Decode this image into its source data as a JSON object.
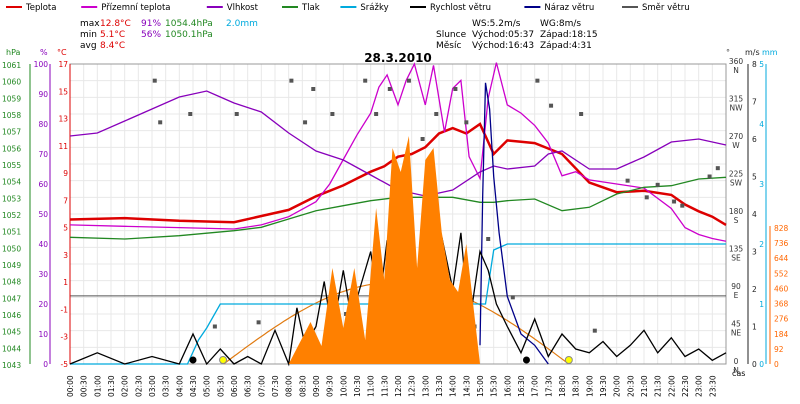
{
  "chart_data": {
    "type": "line",
    "title": "28.3.2010",
    "legend": [
      {
        "name": "Teplota",
        "color": "#dd0000"
      },
      {
        "name": "Přízemní teplota",
        "color": "#cc00cc"
      },
      {
        "name": "Vlhkost",
        "color": "#8800bb"
      },
      {
        "name": "Tlak",
        "color": "#228822"
      },
      {
        "name": "Srážky",
        "color": "#00aadd"
      },
      {
        "name": "Rychlost větru",
        "color": "#000000"
      },
      {
        "name": "Náraz větru",
        "color": "#000088"
      },
      {
        "name": "Směr větru",
        "color": "#555555"
      }
    ],
    "stats": {
      "max_label": "max",
      "min_label": "min",
      "avg_label": "avg",
      "max_temp": "12.8°C",
      "max_hum": "91%",
      "max_press": "1054.4hPa",
      "max_rain": "2.0mm",
      "min_temp": "5.1°C",
      "min_hum": "56%",
      "min_press": "1050.1hPa",
      "avg_temp": "8.4°C"
    },
    "info": {
      "ws": "WS:5.2m/s",
      "wg": "WG:8m/s",
      "sun_label": "Slunce",
      "sun_rise": "Východ:05:37",
      "sun_set": "Západ:18:15",
      "moon_label": "Měsíc",
      "moon_rise": "Východ:16:43",
      "moon_set": "Západ:4:31"
    },
    "axes": {
      "hpa_unit": "hPa",
      "pct_unit": "%",
      "c_unit": "°C",
      "ms_unit": "m/s",
      "deg_unit": "°",
      "mm_unit": "mm",
      "time_unit": "čas",
      "hpa_ticks": [
        "1061",
        "1060",
        "1059",
        "1058",
        "1057",
        "1056",
        "1055",
        "1054",
        "1053",
        "1052",
        "1051",
        "1050",
        "1049",
        "1048",
        "1047",
        "1046",
        "1045",
        "1044",
        "1043"
      ],
      "pct_ticks": [
        "100",
        "90",
        "80",
        "70",
        "60",
        "50",
        "40",
        "30",
        "20",
        "10",
        "0"
      ],
      "c_ticks": [
        "17",
        "15",
        "13",
        "11",
        "9",
        "7",
        "5",
        "3",
        "1",
        "-1",
        "-3",
        "-5"
      ],
      "deg_ticks": [
        {
          "deg": "360",
          "dir": "N"
        },
        {
          "deg": "315",
          "dir": "NW"
        },
        {
          "deg": "270",
          "dir": "W"
        },
        {
          "deg": "225",
          "dir": "SW"
        },
        {
          "deg": "180",
          "dir": "S"
        },
        {
          "deg": "135",
          "dir": "SE"
        },
        {
          "deg": "90",
          "dir": "E"
        },
        {
          "deg": "45",
          "dir": "NE"
        },
        {
          "deg": "0",
          "dir": "N"
        }
      ],
      "ms_ticks": [
        "5",
        "4",
        "3",
        "2",
        "1",
        "0"
      ],
      "wind_ticks": [
        "8",
        "7",
        "6",
        "5",
        "4",
        "3",
        "2",
        "1",
        "0"
      ],
      "rain_ticks": [
        "828",
        "736",
        "644",
        "552",
        "460",
        "368",
        "276",
        "184",
        "92",
        "0"
      ],
      "time_ticks": [
        "00:00",
        "00:30",
        "01:00",
        "01:30",
        "02:00",
        "02:30",
        "03:00",
        "03:30",
        "04:00",
        "04:30",
        "05:00",
        "05:30",
        "06:00",
        "06:30",
        "07:00",
        "07:30",
        "08:00",
        "08:30",
        "09:00",
        "09:30",
        "10:00",
        "10:30",
        "11:00",
        "11:30",
        "12:00",
        "12:30",
        "13:00",
        "13:30",
        "14:00",
        "14:30",
        "15:00",
        "15:30",
        "16:00",
        "16:30",
        "17:00",
        "17:30",
        "18:00",
        "18:30",
        "19:00",
        "19:30",
        "20:00",
        "20:30",
        "21:00",
        "21:30",
        "22:00",
        "22:30",
        "23:00",
        "23:30"
      ]
    },
    "series": [
      {
        "name": "Teplota",
        "unit": "°C",
        "x": [
          0,
          2,
          4,
          6,
          8,
          9,
          10,
          10.5,
          11,
          11.5,
          12,
          12.5,
          13,
          13.5,
          14,
          14.5,
          15,
          15.5,
          16,
          16.5,
          17,
          18,
          19,
          20,
          21,
          22,
          22.5,
          23,
          23.5,
          24
        ],
        "y": [
          5.6,
          5.7,
          5.5,
          5.4,
          6.3,
          7.3,
          8.1,
          8.6,
          9.1,
          9.5,
          10.2,
          10.4,
          10.9,
          11.9,
          12.3,
          11.9,
          12.6,
          10.4,
          11.4,
          11.3,
          11.2,
          10.4,
          8.3,
          7.6,
          7.7,
          7.4,
          6.7,
          6.2,
          5.8,
          5.2
        ]
      },
      {
        "name": "Přízemní teplota",
        "unit": "°C",
        "x": [
          0,
          2,
          4,
          6,
          7,
          8,
          9,
          9.5,
          10,
          10.5,
          11,
          11.3,
          11.6,
          12,
          12.3,
          12.6,
          13,
          13.3,
          13.7,
          14,
          14.3,
          14.6,
          15,
          15.3,
          15.6,
          16,
          16.5,
          17,
          17.5,
          18,
          18.5,
          19,
          20,
          21,
          22,
          22.5,
          23,
          23.5,
          24
        ],
        "y": [
          5.2,
          5.1,
          5.0,
          4.9,
          5.2,
          5.8,
          6.9,
          8.2,
          10.0,
          11.8,
          13.4,
          15.3,
          16.2,
          14.0,
          15.8,
          17.0,
          14.0,
          16.9,
          12.0,
          15.2,
          15.8,
          10.2,
          8.6,
          14.5,
          17.1,
          14.0,
          13.4,
          12.5,
          11.2,
          8.8,
          9.1,
          8.5,
          8.2,
          7.9,
          6.4,
          5.0,
          4.5,
          4.2,
          4.0
        ]
      },
      {
        "name": "Vlhkost",
        "unit": "%",
        "x": [
          0,
          1,
          2,
          3,
          4,
          5,
          5.5,
          6,
          7,
          8,
          9,
          10,
          11,
          12,
          13,
          14,
          15,
          15.5,
          16,
          17,
          17.5,
          18,
          19,
          20,
          21,
          22,
          23,
          24
        ],
        "y": [
          76,
          77,
          81,
          85,
          89,
          91,
          89,
          87,
          84,
          77,
          71,
          68,
          63,
          58,
          56,
          58,
          64,
          66,
          65,
          66,
          70,
          71,
          65,
          65,
          69,
          74,
          75,
          73
        ]
      },
      {
        "name": "Tlak",
        "unit": "hPa",
        "x": [
          0,
          2,
          4,
          6,
          7,
          8,
          9,
          10,
          11,
          12,
          13,
          14,
          15,
          15.5,
          16,
          17,
          18,
          19,
          20,
          21,
          22,
          23,
          24
        ],
        "y": [
          1050.6,
          1050.5,
          1050.7,
          1051.0,
          1051.2,
          1051.7,
          1052.2,
          1052.5,
          1052.8,
          1053.0,
          1053.0,
          1053.0,
          1052.7,
          1052.7,
          1052.8,
          1052.9,
          1052.2,
          1052.4,
          1053.2,
          1053.6,
          1053.7,
          1054.1,
          1054.2
        ]
      },
      {
        "name": "Srážky",
        "unit": "mm",
        "x": [
          0,
          4.3,
          4.7,
          5.0,
          5.5,
          7.0,
          8.0,
          9.0,
          10.0,
          11.0,
          12.0,
          13.0,
          14.0,
          15.0,
          15.2,
          15.5,
          16.0,
          18,
          20,
          22,
          24
        ],
        "y": [
          0,
          0,
          0.4,
          0.6,
          1.0,
          1.0,
          1.0,
          1.0,
          1.0,
          1.0,
          1.0,
          1.0,
          1.0,
          1.0,
          1.0,
          1.9,
          2.0,
          2.0,
          2.0,
          2.0,
          2.0
        ]
      },
      {
        "name": "Náraz větru",
        "unit": "m/s",
        "x": [
          15,
          15.1,
          15.2,
          15.35,
          15.5,
          15.7,
          16,
          16.5,
          17,
          17.5
        ],
        "y": [
          0.5,
          4.5,
          7.5,
          6.8,
          5.0,
          3.5,
          1.8,
          0.8,
          0.5,
          0
        ]
      },
      {
        "name": "Rychlost větru",
        "unit": "m/s",
        "x": [
          0,
          1,
          2,
          3,
          4,
          4.5,
          5,
          5.5,
          6,
          6.5,
          7,
          7.5,
          8,
          8.3,
          8.6,
          9,
          9.3,
          9.6,
          10,
          10.3,
          10.6,
          11,
          11.3,
          11.6,
          12,
          12.3,
          12.6,
          13,
          13.3,
          13.6,
          14,
          14.3,
          14.6,
          15,
          15.3,
          15.6,
          16,
          16.5,
          17,
          17.5,
          18,
          18.5,
          19,
          19.5,
          20,
          20.5,
          21,
          21.5,
          22,
          22.5,
          23,
          23.5,
          24
        ],
        "y": [
          0,
          0.3,
          0,
          0.2,
          0,
          0.8,
          0,
          0.4,
          0,
          0.2,
          0,
          0.9,
          0,
          1.5,
          0.5,
          1.0,
          2.2,
          0.8,
          2.5,
          1.2,
          2.0,
          3.0,
          1.5,
          3.3,
          2.5,
          4.0,
          1.8,
          3.2,
          1.0,
          3.4,
          2.0,
          3.5,
          1.0,
          3.0,
          2.5,
          1.6,
          1.0,
          0.3,
          1.2,
          0.2,
          0.8,
          0.4,
          0.3,
          0.6,
          0.2,
          0.5,
          0.9,
          0.3,
          0.7,
          0.2,
          0.4,
          0.1,
          0.3
        ]
      },
      {
        "name": "Směr větru",
        "unit": "°",
        "type": "scatter",
        "x": [
          3.1,
          3.3,
          4.4,
          5.3,
          6.1,
          6.9,
          8.1,
          8.6,
          8.9,
          9.6,
          10.1,
          10.8,
          11.2,
          11.7,
          12.0,
          12.4,
          12.9,
          13.4,
          13.9,
          14.1,
          14.5,
          14.8,
          15.3,
          16.2,
          17.1,
          17.6,
          18.7,
          19.2,
          20.4,
          21.1,
          21.5,
          22.1,
          22.4,
          23.4,
          23.7
        ],
        "y": [
          340,
          290,
          300,
          45,
          300,
          50,
          340,
          290,
          330,
          300,
          60,
          340,
          300,
          330,
          55,
          340,
          270,
          300,
          30,
          330,
          290,
          45,
          150,
          80,
          340,
          310,
          300,
          40,
          220,
          200,
          215,
          195,
          190,
          225,
          235
        ]
      },
      {
        "name": "Srážky intenzita",
        "unit": "mm",
        "type": "area",
        "x": [
          8,
          8.8,
          9.2,
          9.6,
          10,
          10.4,
          10.8,
          11.2,
          11.5,
          11.8,
          12.1,
          12.4,
          12.7,
          13.0,
          13.3,
          13.6,
          13.9,
          14.2,
          14.5,
          14.8,
          15.0
        ],
        "y": [
          0,
          0.7,
          0.3,
          1.6,
          0.6,
          1.6,
          0.4,
          2.6,
          1.4,
          3.6,
          3.2,
          3.8,
          1.6,
          3.4,
          3.6,
          2.2,
          1.4,
          1.2,
          2.0,
          0.8,
          0
        ]
      }
    ],
    "sun_curve": {
      "rise": 5.62,
      "set": 18.25,
      "peak_c": 1
    },
    "markers": {
      "sun": [
        5.6,
        18.25
      ],
      "moon": [
        4.5,
        16.7
      ]
    },
    "ranges": {
      "c": [
        -5,
        17
      ],
      "pct": [
        0,
        100
      ],
      "hpa": [
        1043,
        1061
      ],
      "ms": [
        0,
        8
      ],
      "mm": [
        0,
        5
      ],
      "deg": [
        0,
        360
      ],
      "hours": [
        0,
        24
      ]
    },
    "colors": {
      "axis_hpa": "#228822",
      "axis_pct": "#8800bb",
      "axis_c": "#dd0000",
      "axis_ms": "#222222",
      "axis_mm": "#00aadd",
      "axis_rain": "#ff6600",
      "fill_rain": "#ff8000",
      "sun_curve": "#e07a10",
      "grid": "#e8e8e8"
    }
  }
}
